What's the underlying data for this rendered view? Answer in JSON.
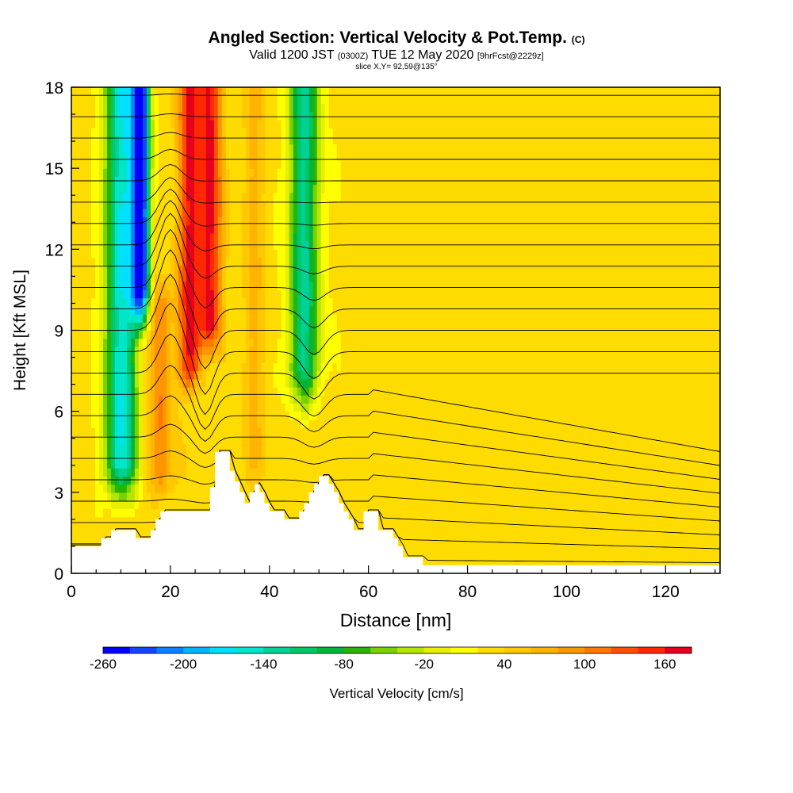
{
  "title": {
    "main": "Angled Section: Vertical Velocity & Pot.Temp.",
    "main_suffix": "(C)",
    "valid_prefix": "Valid 1200 JST",
    "valid_utc": "(0300Z)",
    "valid_date": "TUE 12 May 2020",
    "valid_fcst": "[9hrFcst@2229z]",
    "slice": "slice X,Y= 92,59@135°"
  },
  "chart_data": {
    "type": "heatmap",
    "xlabel": "Distance [nm]",
    "ylabel": "Height [Kft MSL]",
    "xlim": [
      0,
      131
    ],
    "ylim": [
      0,
      18
    ],
    "x_ticks": [
      0,
      20,
      40,
      60,
      80,
      100,
      120
    ],
    "y_ticks": [
      0,
      3,
      6,
      9,
      12,
      15,
      18
    ],
    "colorbar": {
      "label": "Vertical Velocity [cm/s]",
      "tick_labels": [
        "-260",
        "-200",
        "-140",
        "-80",
        "-20",
        "40",
        "100",
        "160"
      ],
      "tick_values": [
        -260,
        -200,
        -140,
        -80,
        -20,
        40,
        100,
        160
      ],
      "range": [
        -260,
        180
      ],
      "step": 20,
      "colors": [
        "#0000ff",
        "#1446ff",
        "#0a82ff",
        "#00b4ff",
        "#00e0ff",
        "#00e6c8",
        "#00d296",
        "#00c864",
        "#00b43c",
        "#28b400",
        "#78d200",
        "#b4e600",
        "#e6f000",
        "#ffff00",
        "#ffdc00",
        "#ffc800",
        "#ffb400",
        "#ff9600",
        "#ff7800",
        "#ff5000",
        "#ff2800",
        "#e6001e",
        "#c80032",
        "#a0005a",
        "#780078",
        "#5a008c"
      ]
    },
    "updraft_cores": [
      {
        "distance_nm": 24,
        "top_kft": 18,
        "bottom_kft": 6.5,
        "peak_cm_s": 160
      },
      {
        "distance_nm": 28,
        "top_kft": 18,
        "bottom_kft": 8,
        "peak_cm_s": 160
      },
      {
        "distance_nm": 18,
        "top_kft": 10,
        "bottom_kft": 2.5,
        "peak_cm_s": 100
      },
      {
        "distance_nm": 37,
        "top_kft": 18,
        "bottom_kft": 3,
        "peak_cm_s": 60
      }
    ],
    "downdraft_cores": [
      {
        "distance_nm": 10,
        "top_kft": 18,
        "bottom_kft": 2.5,
        "peak_cm_s": -160
      },
      {
        "distance_nm": 14,
        "top_kft": 18,
        "bottom_kft": 9,
        "peak_cm_s": -260
      },
      {
        "distance_nm": 47,
        "top_kft": 18,
        "bottom_kft": 6,
        "peak_cm_s": -120
      }
    ],
    "terrain_kft": [
      [
        0,
        1
      ],
      [
        5,
        1
      ],
      [
        6,
        1.3
      ],
      [
        7,
        1.3
      ],
      [
        8,
        1.6
      ],
      [
        12,
        1.6
      ],
      [
        13,
        1.3
      ],
      [
        15,
        1.3
      ],
      [
        16,
        1.6
      ],
      [
        17,
        2
      ],
      [
        18,
        2.3
      ],
      [
        27,
        2.3
      ],
      [
        28,
        3.2
      ],
      [
        29,
        4.5
      ],
      [
        31,
        4.5
      ],
      [
        32,
        3.8
      ],
      [
        33,
        3.4
      ],
      [
        34,
        3
      ],
      [
        35,
        2.6
      ],
      [
        36,
        3
      ],
      [
        37,
        3.3
      ],
      [
        38,
        3
      ],
      [
        39,
        2.6
      ],
      [
        40,
        2.3
      ],
      [
        42,
        2.3
      ],
      [
        43,
        2
      ],
      [
        45,
        2
      ],
      [
        46,
        2.3
      ],
      [
        47,
        2.6
      ],
      [
        48,
        3
      ],
      [
        49,
        3.3
      ],
      [
        50,
        3.6
      ],
      [
        52,
        3.3
      ],
      [
        53,
        3
      ],
      [
        54,
        2.6
      ],
      [
        55,
        2.3
      ],
      [
        56,
        2
      ],
      [
        57,
        1.6
      ],
      [
        58,
        1.6
      ],
      [
        59,
        2.3
      ],
      [
        61,
        2.3
      ],
      [
        62,
        1.6
      ],
      [
        64,
        1.6
      ],
      [
        65,
        1.3
      ],
      [
        66,
        1
      ],
      [
        67,
        0.6
      ],
      [
        70,
        0.6
      ],
      [
        71,
        0.3
      ],
      [
        131,
        0.3
      ]
    ],
    "theta_contours_C": [
      20,
      22,
      24,
      26,
      28,
      30,
      32,
      34,
      36,
      38,
      40,
      42,
      44,
      46,
      48,
      50,
      52,
      54,
      56,
      58,
      60,
      62,
      64
    ]
  }
}
